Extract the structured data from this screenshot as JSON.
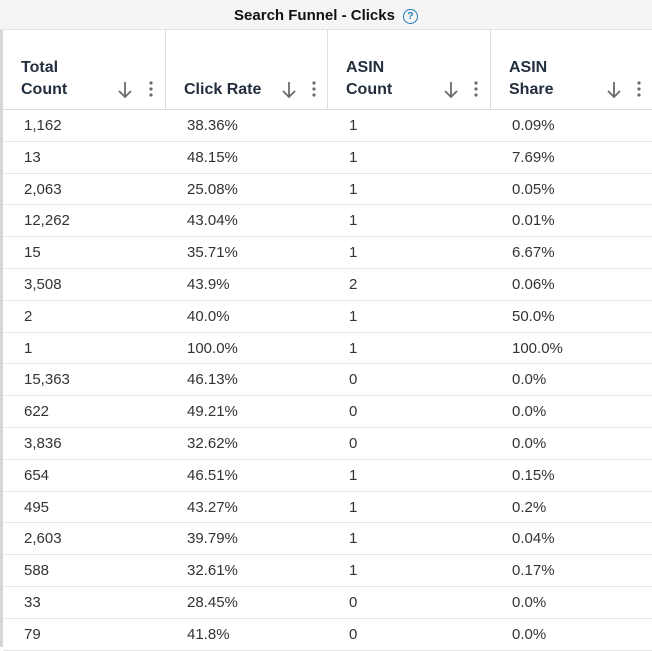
{
  "group_header": {
    "title": "Search Funnel - Clicks",
    "help_icon": "?"
  },
  "columns": [
    {
      "label": "Total\nCount",
      "sort_icon": "arrow-down-icon",
      "menu_icon": "kebab-menu-icon"
    },
    {
      "label": "Click Rate",
      "sort_icon": "arrow-down-icon",
      "menu_icon": "kebab-menu-icon"
    },
    {
      "label": "ASIN\nCount",
      "sort_icon": "arrow-down-icon",
      "menu_icon": "kebab-menu-icon"
    },
    {
      "label": "ASIN\nShare",
      "sort_icon": "arrow-down-icon",
      "menu_icon": "kebab-menu-icon"
    }
  ],
  "rows": [
    [
      "1,162",
      "38.36%",
      "1",
      "0.09%"
    ],
    [
      "13",
      "48.15%",
      "1",
      "7.69%"
    ],
    [
      "2,063",
      "25.08%",
      "1",
      "0.05%"
    ],
    [
      "12,262",
      "43.04%",
      "1",
      "0.01%"
    ],
    [
      "15",
      "35.71%",
      "1",
      "6.67%"
    ],
    [
      "3,508",
      "43.9%",
      "2",
      "0.06%"
    ],
    [
      "2",
      "40.0%",
      "1",
      "50.0%"
    ],
    [
      "1",
      "100.0%",
      "1",
      "100.0%"
    ],
    [
      "15,363",
      "46.13%",
      "0",
      "0.0%"
    ],
    [
      "622",
      "49.21%",
      "0",
      "0.0%"
    ],
    [
      "3,836",
      "32.62%",
      "0",
      "0.0%"
    ],
    [
      "654",
      "46.51%",
      "1",
      "0.15%"
    ],
    [
      "495",
      "43.27%",
      "1",
      "0.2%"
    ],
    [
      "2,603",
      "39.79%",
      "1",
      "0.04%"
    ],
    [
      "588",
      "32.61%",
      "1",
      "0.17%"
    ],
    [
      "33",
      "28.45%",
      "0",
      "0.0%"
    ],
    [
      "79",
      "41.8%",
      "0",
      "0.0%"
    ]
  ],
  "colors": {
    "header_text": "#232f3e",
    "cell_text": "#333333",
    "help_icon": "#1f7ab8",
    "icon_gray": "#6b6b6b"
  }
}
